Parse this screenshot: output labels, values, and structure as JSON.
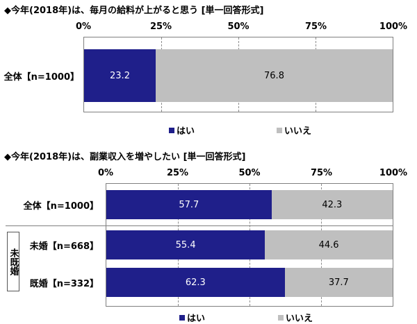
{
  "titles": {
    "chart1": "◆今年(2018年)は、毎月の給料が上がると思う [単一回答形式]",
    "chart2": "◆今年(2018年)は、副業収入を増やしたい [単一回答形式]"
  },
  "axis_ticks": [
    "0%",
    "25%",
    "50%",
    "75%",
    "100%"
  ],
  "legend": {
    "yes": "はい",
    "no": "いいえ"
  },
  "colors": {
    "yes": "#1f1f8a",
    "no": "#bfbfbf"
  },
  "group_label": "未既婚",
  "chart_data": [
    {
      "type": "bar",
      "orientation": "horizontal",
      "stacked": true,
      "title": "◆今年(2018年)は、毎月の給料が上がると思う [単一回答形式]",
      "categories": [
        "全体【n=1000】"
      ],
      "series": [
        {
          "name": "はい",
          "values": [
            23.2
          ]
        },
        {
          "name": "いいえ",
          "values": [
            76.8
          ]
        }
      ],
      "xlim": [
        0,
        100
      ],
      "legend": "bottom"
    },
    {
      "type": "bar",
      "orientation": "horizontal",
      "stacked": true,
      "title": "◆今年(2018年)は、副業収入を増やしたい [単一回答形式]",
      "categories": [
        "全体【n=1000】",
        "未婚【n=668】",
        "既婚【n=332】"
      ],
      "series": [
        {
          "name": "はい",
          "values": [
            57.7,
            55.4,
            62.3
          ]
        },
        {
          "name": "いいえ",
          "values": [
            42.3,
            44.6,
            37.7
          ]
        }
      ],
      "xlim": [
        0,
        100
      ],
      "legend": "bottom"
    }
  ]
}
